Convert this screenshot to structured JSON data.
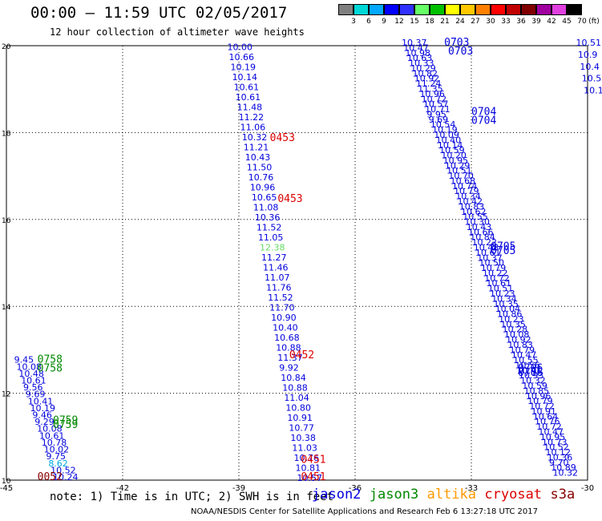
{
  "title": "00:00 – 11:59 UTC 02/05/2017",
  "subtitle": "12 hour collection of altimeter wave heights",
  "note": "note:  1) Time is in UTC; 2) SWH is in feet",
  "footer": "NOAA/NESDIS Center for Satellite Applications and Research   Feb  6 13:27:18 UTC 2017",
  "satellites": [
    {
      "name": "jason2",
      "color": "#0000dd"
    },
    {
      "name": "jason3",
      "color": "#008800"
    },
    {
      "name": "altika",
      "color": "#ff9900"
    },
    {
      "name": "cryosat",
      "color": "#dd0000"
    },
    {
      "name": "s3a",
      "color": "#880000"
    }
  ],
  "colorbar": {
    "colors": [
      "#808080",
      "#00d8d8",
      "#00a8ff",
      "#0000ff",
      "#3030ff",
      "#66ff66",
      "#00c000",
      "#ffff00",
      "#ffc800",
      "#ff8000",
      "#ff0000",
      "#c00000",
      "#800000",
      "#a000a0",
      "#e040e0",
      "#000000"
    ],
    "labels": [
      "3",
      "6",
      "9",
      "12",
      "15",
      "18",
      "21",
      "24",
      "27",
      "30",
      "33",
      "36",
      "39",
      "42",
      "45",
      "70",
      "(ft)"
    ]
  },
  "axes": {
    "x_ticks": [
      "-45",
      "-42",
      "-39",
      "-36",
      "-33",
      "-30"
    ],
    "y_ticks": [
      "10",
      "12",
      "14",
      "16",
      "18",
      "20"
    ],
    "x_range": [
      -45,
      -30
    ],
    "y_range": [
      10,
      20
    ]
  },
  "time_labels": [
    {
      "text": "0453",
      "lon": -38.2,
      "lat": 17.8,
      "color": "#dd0000"
    },
    {
      "text": "0453",
      "lon": -38.0,
      "lat": 16.4,
      "color": "#dd0000"
    },
    {
      "text": "0452",
      "lon": -37.7,
      "lat": 12.8,
      "color": "#dd0000"
    },
    {
      "text": "0451",
      "lon": -37.4,
      "lat": 10.4,
      "color": "#dd0000"
    },
    {
      "text": "0451",
      "lon": -37.4,
      "lat": 10.0,
      "color": "#dd0000"
    },
    {
      "text": "0703",
      "lon": -33.7,
      "lat": 20.0,
      "color": "#0000dd"
    },
    {
      "text": "0703",
      "lon": -33.6,
      "lat": 19.8,
      "color": "#0000dd"
    },
    {
      "text": "0704",
      "lon": -33.0,
      "lat": 18.4,
      "color": "#0000dd"
    },
    {
      "text": "0704",
      "lon": -33.0,
      "lat": 18.2,
      "color": "#0000dd"
    },
    {
      "text": "0705",
      "lon": -32.5,
      "lat": 15.3,
      "color": "#0000dd"
    },
    {
      "text": "0705",
      "lon": -32.5,
      "lat": 15.2,
      "color": "#0000dd"
    },
    {
      "text": "0706",
      "lon": -31.8,
      "lat": 12.5,
      "color": "#0000dd"
    },
    {
      "text": "0706",
      "lon": -31.8,
      "lat": 12.4,
      "color": "#0000dd"
    },
    {
      "text": "0758",
      "lon": -44.2,
      "lat": 12.7,
      "color": "#008800"
    },
    {
      "text": "0758",
      "lon": -44.2,
      "lat": 12.5,
      "color": "#008800"
    },
    {
      "text": "0759",
      "lon": -43.8,
      "lat": 11.3,
      "color": "#008800"
    },
    {
      "text": "0759",
      "lon": -43.8,
      "lat": 11.2,
      "color": "#008800"
    },
    {
      "text": "0052",
      "lon": -44.2,
      "lat": 10.0,
      "color": "#880000"
    }
  ],
  "tracks": [
    {
      "name": "cryosat-0451",
      "color": "#0000dd",
      "values": [
        "10.00",
        "10.66",
        "10.19",
        "10.14",
        "10.61",
        "10.61",
        "11.48",
        "11.22",
        "11.06",
        "10.32",
        "11.21",
        "10.43",
        "11.50",
        "10.76",
        "10.96",
        "10.65",
        "11.08",
        "10.36",
        "11.52",
        "11.05",
        "12.38",
        "11.27",
        "11.46",
        "11.07",
        "11.76",
        "11.52",
        "11.70",
        "10.90",
        "10.40",
        "10.68",
        "10.88",
        "11.37",
        "9.92",
        "10.84",
        "10.88",
        "11.04",
        "10.80",
        "10.91",
        "10.77",
        "10.38",
        "11.03",
        "10.76",
        "10.81",
        "10.57"
      ],
      "lon_start": -39.3,
      "lat_start": 19.9,
      "lon_end": -37.5,
      "lat_end": 9.98
    },
    {
      "name": "jason2-0703",
      "color": "#0000dd",
      "values": [
        "10.37",
        "10.47",
        "10.98",
        "10.63",
        "10.33",
        "10.29",
        "10.82",
        "10.92",
        "11.24",
        "11.35",
        "10.96",
        "10.72",
        "10.57",
        "10.71",
        "9.95",
        "9.69",
        "10.54",
        "10.19",
        "10.09",
        "10.40",
        "10.14",
        "10.59",
        "10.20",
        "10.95",
        "10.29",
        "10.51",
        "10.70",
        "10.68",
        "10.74",
        "10.79",
        "10.34",
        "10.42",
        "10.83",
        "10.62",
        "10.55",
        "10.30",
        "10.43",
        "10.66",
        "10.84",
        "10.22",
        "10.48",
        "10.61",
        "10.37",
        "10.50",
        "10.79",
        "10.22",
        "10.72",
        "10.61",
        "10.51",
        "10.23",
        "10.34",
        "10.35",
        "10.04",
        "10.86",
        "10.23",
        "10.35",
        "10.28",
        "10.08",
        "10.92",
        "10.83",
        "10.79",
        "10.47",
        "10.55",
        "10.56",
        "10.41",
        "10.93",
        "10.32",
        "10.59",
        "10.85",
        "10.96",
        "10.79",
        "10.72",
        "10.91",
        "10.64",
        "10.76",
        "10.72",
        "10.47",
        "10.95",
        "10.73",
        "10.52",
        "10.12",
        "10.36",
        "9.70",
        "10.89",
        "10.32"
      ],
      "lon_start": -34.8,
      "lat_start": 20.0,
      "lon_end": -30.9,
      "lat_end": 10.1
    },
    {
      "name": "jason3-0758",
      "color": "#0000dd",
      "values": [
        "9.45",
        "10.08",
        "10.48",
        "10.61",
        "9.56",
        "9.69",
        "10.41",
        "10.19",
        "9.46",
        "9.29",
        "10.08",
        "10.61",
        "10.78",
        "10.02",
        "9.75",
        "8.62",
        "10.52",
        "10.24"
      ],
      "lon_start": -44.8,
      "lat_start": 12.7,
      "lon_end": -43.8,
      "lat_end": 10.0
    },
    {
      "name": "jason2-east",
      "color": "#0000dd",
      "values": [
        "10.51",
        "10.9",
        "10.4",
        "10.5",
        "10.1"
      ],
      "lon_start": -30.3,
      "lat_start": 20.0,
      "lon_end": -30.1,
      "lat_end": 18.9
    }
  ]
}
